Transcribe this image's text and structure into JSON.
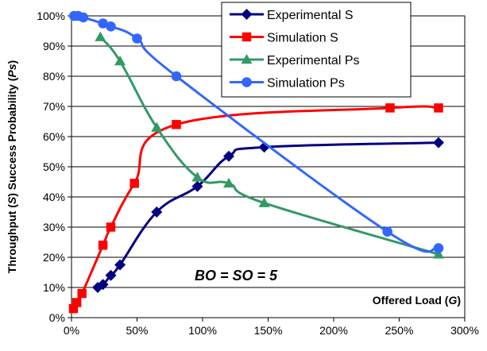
{
  "chart_data": {
    "type": "line",
    "title": "",
    "xlabel": "",
    "ylabel_parts": [
      {
        "text": "Throughput (",
        "italic": false
      },
      {
        "text": "S",
        "italic": true
      },
      {
        "text": ") Success Probability (",
        "italic": false
      },
      {
        "text": "Ps",
        "italic": true
      },
      {
        "text": ")",
        "italic": false
      }
    ],
    "xlim": [
      0,
      300
    ],
    "ylim": [
      0,
      100
    ],
    "x_ticks": [
      "0%",
      "50%",
      "100%",
      "150%",
      "200%",
      "250%",
      "300%"
    ],
    "y_ticks": [
      "0%",
      "10%",
      "20%",
      "30%",
      "40%",
      "50%",
      "60%",
      "70%",
      "80%",
      "90%",
      "100%"
    ],
    "grid": true,
    "legend_placement": "top-center",
    "annotation_bo_so": "BO = SO = 5",
    "annotation_offered_load": {
      "prefix": "Offered Load (",
      "var": "G",
      "suffix": ")"
    },
    "series": [
      {
        "name": "Experimental S",
        "color": "#000080",
        "marker": "diamond",
        "x": [
          20,
          24,
          30,
          37,
          65,
          96,
          120,
          147,
          280
        ],
        "y": [
          10,
          11,
          14,
          17.5,
          35,
          43.5,
          53.5,
          56.5,
          58
        ]
      },
      {
        "name": "Simulation S",
        "color": "#ff0000",
        "marker": "square",
        "x": [
          1.5,
          4,
          8,
          24,
          30,
          48,
          80,
          243,
          280
        ],
        "y": [
          3,
          5,
          8,
          24,
          30,
          44.5,
          64,
          69.5,
          69.5
        ]
      },
      {
        "name": "Experimental Ps",
        "color": "#339966",
        "marker": "triangle",
        "x": [
          22,
          37,
          65,
          96,
          120,
          147,
          280
        ],
        "y": [
          93,
          85,
          63,
          46.5,
          44.5,
          38,
          21
        ]
      },
      {
        "name": "Simulation Ps",
        "color": "#3366ff",
        "marker": "circle",
        "x": [
          2,
          5,
          9,
          24,
          30,
          50,
          80,
          241,
          280
        ],
        "y": [
          100,
          100,
          99.5,
          97.5,
          96.5,
          92.5,
          80,
          28.5,
          23
        ]
      }
    ]
  }
}
